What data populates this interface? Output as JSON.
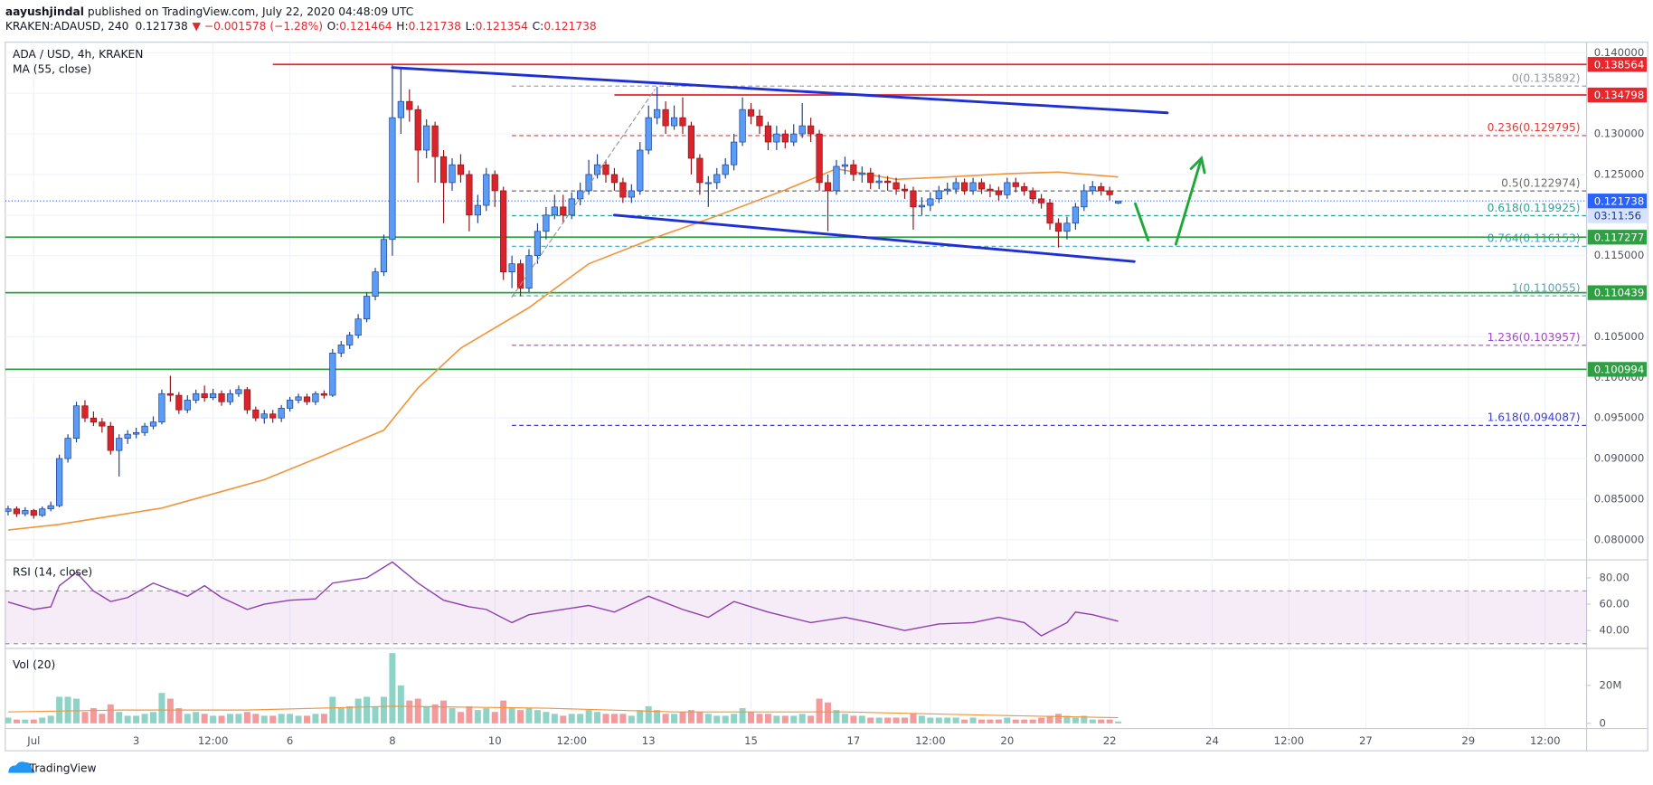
{
  "header": {
    "author": "aayushjindal",
    "published": " published on TradingView.com, July 22, 2020 04:48:09 UTC",
    "symbol": "KRAKEN:ADAUSD, 240",
    "last": "0.121738",
    "change": "▼ −0.001578 (−1.28%)",
    "ohlc": [
      {
        "k": "O:",
        "v": "0.121464"
      },
      {
        "k": "H:",
        "v": "0.121738"
      },
      {
        "k": "L:",
        "v": "0.121354"
      },
      {
        "k": "C:",
        "v": "0.121738"
      }
    ]
  },
  "footer": {
    "logo": "TradingView"
  },
  "chart_data": {
    "type": "candlestick",
    "title": "ADA / USD, 4h, KRAKEN",
    "up_color": "#5b9cf6",
    "up_border": "#1c3f8f",
    "down_color": "#d8242a",
    "down_border": "#8c1519",
    "xlim": [
      -13.33,
      727.4
    ],
    "xticks": [
      {
        "value": 0,
        "label": "Jul"
      },
      {
        "value": 48,
        "label": "3"
      },
      {
        "value": 84,
        "label": "12:00"
      },
      {
        "value": 120,
        "label": "6"
      },
      {
        "value": 168,
        "label": "8"
      },
      {
        "value": 216,
        "label": "10"
      },
      {
        "value": 252,
        "label": "12:00"
      },
      {
        "value": 288,
        "label": "13"
      },
      {
        "value": 336,
        "label": "15"
      },
      {
        "value": 384,
        "label": "17"
      },
      {
        "value": 420,
        "label": "12:00"
      },
      {
        "value": 456,
        "label": "20"
      },
      {
        "value": 504,
        "label": "22"
      },
      {
        "value": 552,
        "label": "24"
      },
      {
        "value": 588,
        "label": "12:00"
      },
      {
        "value": 624,
        "label": "27"
      },
      {
        "value": 672,
        "label": "29"
      },
      {
        "value": 708,
        "label": "12:00"
      }
    ],
    "ylim": [
      0.07765,
      0.1413
    ],
    "yticks": [
      {
        "value": 0.14,
        "label": "0.140000"
      },
      {
        "value": 0.135,
        "label": "0.135000"
      },
      {
        "value": 0.13,
        "label": "0.130000"
      },
      {
        "value": 0.125,
        "label": "0.125000"
      },
      {
        "value": 0.12,
        "label": "0.120000"
      },
      {
        "value": 0.115,
        "label": "0.115000"
      },
      {
        "value": 0.11,
        "label": "0.110000"
      },
      {
        "value": 0.105,
        "label": "0.105000"
      },
      {
        "value": 0.1,
        "label": "0.100000"
      },
      {
        "value": 0.095,
        "label": "0.095000"
      },
      {
        "value": 0.09,
        "label": "0.090000"
      },
      {
        "value": 0.085,
        "label": "0.085000"
      },
      {
        "value": 0.08,
        "label": "0.080000"
      }
    ],
    "grid": true,
    "x": [
      -12,
      -8,
      -4,
      0,
      4,
      8,
      12,
      16,
      20,
      24,
      28,
      32,
      36,
      40,
      44,
      48,
      52,
      56,
      60,
      64,
      68,
      72,
      76,
      80,
      84,
      88,
      92,
      96,
      100,
      104,
      108,
      112,
      116,
      120,
      124,
      128,
      132,
      136,
      140,
      144,
      148,
      152,
      156,
      160,
      164,
      168,
      172,
      176,
      180,
      184,
      188,
      192,
      196,
      200,
      204,
      208,
      212,
      216,
      220,
      224,
      228,
      232,
      236,
      240,
      244,
      248,
      252,
      256,
      260,
      264,
      268,
      272,
      276,
      280,
      284,
      288,
      292,
      296,
      300,
      304,
      308,
      312,
      316,
      320,
      324,
      328,
      332,
      336,
      340,
      344,
      348,
      352,
      356,
      360,
      364,
      368,
      372,
      376,
      380,
      384,
      388,
      392,
      396,
      400,
      404,
      408,
      412,
      416,
      420,
      424,
      428,
      432,
      436,
      440,
      444,
      448,
      452,
      456,
      460,
      464,
      468,
      472,
      476,
      480,
      484,
      488,
      492,
      496,
      500,
      504,
      508
    ],
    "open": [
      0.0835,
      0.0838,
      0.0832,
      0.0836,
      0.083,
      0.0838,
      0.0842,
      0.09,
      0.0925,
      0.0965,
      0.095,
      0.0945,
      0.094,
      0.091,
      0.0925,
      0.093,
      0.0932,
      0.094,
      0.0945,
      0.098,
      0.0978,
      0.096,
      0.0972,
      0.098,
      0.0975,
      0.098,
      0.097,
      0.098,
      0.0985,
      0.096,
      0.095,
      0.0955,
      0.095,
      0.0962,
      0.0972,
      0.0976,
      0.097,
      0.098,
      0.0978,
      0.103,
      0.104,
      0.1052,
      0.1072,
      0.11,
      0.113,
      0.117,
      0.132,
      0.134,
      0.133,
      0.128,
      0.131,
      0.1272,
      0.124,
      0.1262,
      0.125,
      0.12,
      0.1212,
      0.125,
      0.123,
      0.113,
      0.114,
      0.111,
      0.115,
      0.118,
      0.12,
      0.121,
      0.12,
      0.122,
      0.123,
      0.125,
      0.1262,
      0.125,
      0.124,
      0.1222,
      0.123,
      0.128,
      0.132,
      0.133,
      0.131,
      0.132,
      0.131,
      0.127,
      0.124,
      0.124,
      0.125,
      0.1262,
      0.129,
      0.133,
      0.1322,
      0.131,
      0.129,
      0.13,
      0.129,
      0.13,
      0.131,
      0.13,
      0.124,
      0.123,
      0.126,
      0.1262,
      0.125,
      0.1252,
      0.124,
      0.1242,
      0.124,
      0.1232,
      0.123,
      0.121,
      0.1212,
      0.122,
      0.123,
      0.1232,
      0.124,
      0.123,
      0.124,
      0.1232,
      0.123,
      0.1225,
      0.124,
      0.1235,
      0.123,
      0.122,
      0.1215,
      0.119,
      0.118,
      0.119,
      0.121,
      0.123,
      0.1235,
      0.123,
      0.121464
    ],
    "high": [
      0.0842,
      0.0841,
      0.084,
      0.0838,
      0.0841,
      0.0847,
      0.0905,
      0.093,
      0.097,
      0.0972,
      0.0958,
      0.095,
      0.0945,
      0.093,
      0.0935,
      0.0938,
      0.0944,
      0.0952,
      0.0985,
      0.1002,
      0.0982,
      0.0978,
      0.0985,
      0.099,
      0.0986,
      0.0984,
      0.0985,
      0.099,
      0.0988,
      0.0964,
      0.096,
      0.096,
      0.0966,
      0.0976,
      0.098,
      0.098,
      0.0983,
      0.0984,
      0.1035,
      0.1045,
      0.1056,
      0.1078,
      0.1105,
      0.1135,
      0.1176,
      0.1385,
      0.138,
      0.1355,
      0.1335,
      0.1318,
      0.1315,
      0.128,
      0.127,
      0.1275,
      0.1255,
      0.1225,
      0.1258,
      0.1255,
      0.1235,
      0.115,
      0.1145,
      0.1158,
      0.119,
      0.121,
      0.1225,
      0.1225,
      0.1228,
      0.124,
      0.1268,
      0.1275,
      0.1268,
      0.1258,
      0.1246,
      0.1238,
      0.129,
      0.1335,
      0.1358,
      0.134,
      0.1335,
      0.1345,
      0.1315,
      0.1275,
      0.1248,
      0.1258,
      0.127,
      0.13,
      0.1345,
      0.1338,
      0.133,
      0.1315,
      0.131,
      0.1305,
      0.1312,
      0.1338,
      0.132,
      0.1305,
      0.125,
      0.1268,
      0.1272,
      0.1268,
      0.126,
      0.1258,
      0.125,
      0.1248,
      0.1246,
      0.1238,
      0.1235,
      0.1222,
      0.1228,
      0.1236,
      0.124,
      0.1246,
      0.1245,
      0.1246,
      0.1245,
      0.1238,
      0.1235,
      0.1246,
      0.1246,
      0.124,
      0.1234,
      0.1226,
      0.122,
      0.1196,
      0.1198,
      0.1215,
      0.1238,
      0.1242,
      0.124,
      0.1235,
      0.121738
    ],
    "low": [
      0.083,
      0.0828,
      0.0829,
      0.0826,
      0.0828,
      0.0835,
      0.084,
      0.0895,
      0.092,
      0.0945,
      0.094,
      0.0932,
      0.0905,
      0.0878,
      0.0918,
      0.0925,
      0.0928,
      0.0936,
      0.0942,
      0.097,
      0.0955,
      0.0956,
      0.0968,
      0.097,
      0.0972,
      0.0965,
      0.0966,
      0.0976,
      0.0955,
      0.0946,
      0.0943,
      0.0944,
      0.0945,
      0.0958,
      0.0968,
      0.0966,
      0.0966,
      0.0974,
      0.0976,
      0.1025,
      0.1035,
      0.1048,
      0.1068,
      0.1095,
      0.1125,
      0.115,
      0.13,
      0.1315,
      0.124,
      0.127,
      0.124,
      0.119,
      0.123,
      0.124,
      0.118,
      0.119,
      0.1205,
      0.121,
      0.112,
      0.111,
      0.11,
      0.1105,
      0.114,
      0.117,
      0.1195,
      0.119,
      0.1195,
      0.1212,
      0.1225,
      0.1245,
      0.124,
      0.123,
      0.1215,
      0.1215,
      0.1225,
      0.1275,
      0.1312,
      0.13,
      0.1305,
      0.13,
      0.125,
      0.1225,
      0.121,
      0.1232,
      0.1245,
      0.1255,
      0.1285,
      0.1312,
      0.13,
      0.128,
      0.128,
      0.1282,
      0.1285,
      0.1295,
      0.129,
      0.123,
      0.118,
      0.1225,
      0.125,
      0.1242,
      0.124,
      0.1232,
      0.1232,
      0.123,
      0.1225,
      0.122,
      0.1182,
      0.12,
      0.1205,
      0.1215,
      0.1225,
      0.1226,
      0.1225,
      0.1225,
      0.1226,
      0.1222,
      0.1218,
      0.122,
      0.1228,
      0.1224,
      0.1214,
      0.1208,
      0.1182,
      0.116,
      0.117,
      0.1182,
      0.1205,
      0.1225,
      0.1224,
      0.1218,
      0.121354
    ],
    "close": [
      0.0838,
      0.0832,
      0.0836,
      0.083,
      0.0838,
      0.0842,
      0.09,
      0.0925,
      0.0965,
      0.095,
      0.0945,
      0.094,
      0.091,
      0.0925,
      0.093,
      0.0932,
      0.094,
      0.0945,
      0.098,
      0.0978,
      0.096,
      0.0972,
      0.098,
      0.0975,
      0.098,
      0.097,
      0.098,
      0.0985,
      0.096,
      0.095,
      0.0955,
      0.095,
      0.0962,
      0.0972,
      0.0976,
      0.097,
      0.098,
      0.0978,
      0.103,
      0.104,
      0.1052,
      0.1072,
      0.11,
      0.113,
      0.117,
      0.132,
      0.134,
      0.133,
      0.128,
      0.131,
      0.1272,
      0.124,
      0.1262,
      0.125,
      0.12,
      0.1212,
      0.125,
      0.123,
      0.113,
      0.114,
      0.111,
      0.115,
      0.118,
      0.12,
      0.121,
      0.12,
      0.122,
      0.123,
      0.125,
      0.1262,
      0.125,
      0.124,
      0.1222,
      0.123,
      0.128,
      0.132,
      0.133,
      0.131,
      0.132,
      0.131,
      0.127,
      0.124,
      0.124,
      0.125,
      0.1262,
      0.129,
      0.133,
      0.1322,
      0.131,
      0.129,
      0.13,
      0.129,
      0.13,
      0.131,
      0.13,
      0.124,
      0.123,
      0.126,
      0.1262,
      0.125,
      0.1252,
      0.124,
      0.1242,
      0.124,
      0.1232,
      0.123,
      0.121,
      0.1212,
      0.122,
      0.123,
      0.1232,
      0.124,
      0.123,
      0.124,
      0.1232,
      0.123,
      0.1225,
      0.124,
      0.1235,
      0.123,
      0.122,
      0.1215,
      0.119,
      0.118,
      0.119,
      0.121,
      0.123,
      0.1235,
      0.123,
      0.1225,
      0.121738
    ],
    "price_line_color": "#2962ff",
    "countdown": "03:11:56",
    "ma": {
      "name": "MA (55, close)",
      "color": "#f0963c",
      "x": [
        -12,
        12,
        60,
        108,
        136,
        164,
        180,
        200,
        232,
        260,
        292,
        320,
        352,
        376,
        404,
        428,
        456,
        480,
        508
      ],
      "values": [
        0.0812,
        0.0819,
        0.0839,
        0.0874,
        0.0904,
        0.0935,
        0.0987,
        0.1036,
        0.1086,
        0.114,
        0.1173,
        0.1199,
        0.1231,
        0.1257,
        0.1244,
        0.1247,
        0.1251,
        0.1253,
        0.1247
      ]
    },
    "fib": {
      "start_x": 224,
      "levels": [
        {
          "label": "0(0.135892)",
          "value": 0.135892,
          "color": "#9598a1"
        },
        {
          "label": "0.236(0.129795)",
          "value": 0.129795,
          "color": "#e53935"
        },
        {
          "label": "0.5(0.122974)",
          "value": 0.122974,
          "color": "#6b6b6b"
        },
        {
          "label": "0.618(0.119925)",
          "value": 0.119925,
          "color": "#26a69a"
        },
        {
          "label": "0.764(0.116153)",
          "value": 0.116153,
          "color": "#3aa0c8"
        },
        {
          "label": "1(0.110055)",
          "value": 0.110055,
          "color": "#5ba3b6"
        },
        {
          "label": "1.236(0.103957)",
          "value": 0.103957,
          "color": "#a347c9"
        },
        {
          "label": "1.618(0.094087)",
          "value": 0.094087,
          "color": "#3f3fd0"
        }
      ]
    },
    "hlines": [
      {
        "value": 0.138564,
        "color": "#e8262c",
        "start_x": 112
      },
      {
        "value": 0.134798,
        "color": "#e8262c",
        "start_x": 272
      },
      {
        "value": 0.117277,
        "color": "#2ea043"
      },
      {
        "value": 0.110439,
        "color": "#2ea043"
      },
      {
        "value": 0.100994,
        "color": "#2ea043"
      }
    ],
    "drawings": [
      {
        "color": "#1f2fd6",
        "width": 2.5,
        "points": [
          [
            168,
            0.13818
          ],
          [
            531,
            0.1326
          ]
        ]
      },
      {
        "color": "#1f2fd6",
        "width": 2.5,
        "points": [
          [
            272,
            0.12
          ],
          [
            515.5,
            0.11428
          ]
        ]
      },
      {
        "color": "#9598a1",
        "width": 1,
        "dash": true,
        "points": [
          [
            224,
            0.1099
          ],
          [
            291,
            0.1355
          ]
        ]
      },
      {
        "color": "#1fa83a",
        "width": 2.5,
        "points": [
          [
            516,
            0.1214
          ],
          [
            522,
            0.1169
          ]
        ]
      },
      {
        "color": "#1fa83a",
        "width": 2.5,
        "head": true,
        "points": [
          [
            535,
            0.1164
          ],
          [
            547,
            0.127
          ]
        ]
      }
    ],
    "rsi": {
      "name": "RSI (14, close)",
      "color": "#8e3fae",
      "band": [
        30,
        70
      ],
      "band_color": "#9c27b0",
      "ylim": [
        27.2,
        92.8
      ],
      "yticks": [
        {
          "value": 80,
          "label": "80.00"
        },
        {
          "value": 60,
          "label": "60.00"
        },
        {
          "value": 40,
          "label": "40.00"
        }
      ],
      "x": [
        -12,
        0,
        8,
        12,
        20,
        28,
        36,
        44,
        56,
        72,
        80,
        88,
        100,
        108,
        120,
        132,
        140,
        156,
        168,
        180,
        192,
        204,
        212,
        224,
        232,
        248,
        260,
        272,
        288,
        304,
        316,
        328,
        344,
        364,
        380,
        392,
        408,
        424,
        440,
        452,
        464,
        472,
        484,
        488,
        496,
        508
      ],
      "values": [
        61.6,
        56,
        58,
        74,
        84,
        70,
        62,
        65,
        76,
        66,
        74,
        65,
        56,
        60,
        63,
        64,
        76,
        80,
        92,
        76,
        63,
        58,
        56,
        46,
        52,
        56,
        59,
        54,
        66,
        56,
        50,
        62,
        54,
        46,
        50,
        46,
        40,
        45,
        46,
        50,
        46,
        36,
        46,
        54,
        52,
        47
      ]
    },
    "volume": {
      "name": "Vol (20)",
      "up_color": "#8fd3c6",
      "down_color": "#f29a9c",
      "ylim": [
        -2200000,
        38900000
      ],
      "yticks": [
        {
          "value": 20000000,
          "label": "20M"
        },
        0
      ],
      "values": [
        3000000.0,
        2000000.0,
        2000000.0,
        2000000.0,
        3000000.0,
        4000000.0,
        14000000.0,
        14000000.0,
        13000000.0,
        6000000.0,
        8000000.0,
        5000000.0,
        10000000.0,
        6000000.0,
        4000000.0,
        4000000.0,
        5000000.0,
        6000000.0,
        16000000.0,
        13000000.0,
        8000000.0,
        5000000.0,
        6000000.0,
        5000000.0,
        4000000.0,
        4000000.0,
        5000000.0,
        5000000.0,
        6000000.0,
        5000000.0,
        4000000.0,
        4000000.0,
        5000000.0,
        5000000.0,
        4000000.0,
        4000000.0,
        5000000.0,
        5000000.0,
        14000000.0,
        8000000.0,
        9000000.0,
        13000000.0,
        14000000.0,
        9000000.0,
        14000000.0,
        37000000.0,
        20000000.0,
        12000000.0,
        13000000.0,
        9000000.0,
        10000000.0,
        12000000.0,
        8000000.0,
        6000000.0,
        9000000.0,
        7000000.0,
        8000000.0,
        6000000.0,
        12000000.0,
        8000000.0,
        7000000.0,
        8000000.0,
        7000000.0,
        6000000.0,
        5000000.0,
        4000000.0,
        5000000.0,
        5000000.0,
        7000000.0,
        6000000.0,
        5000000.0,
        5000000.0,
        5000000.0,
        4000000.0,
        7000000.0,
        9000000.0,
        7000000.0,
        5000000.0,
        5000000.0,
        6000000.0,
        7000000.0,
        6000000.0,
        5000000.0,
        4000000.0,
        4000000.0,
        5000000.0,
        8000000.0,
        6000000.0,
        5000000.0,
        5000000.0,
        4000000.0,
        4000000.0,
        4000000.0,
        5000000.0,
        4000000.0,
        13000000.0,
        11000000.0,
        7000000.0,
        5000000.0,
        4000000.0,
        4000000.0,
        3000000.0,
        3000000.0,
        3000000.0,
        3000000.0,
        3000000.0,
        5000000.0,
        4000000.0,
        3000000.0,
        3000000.0,
        3000000.0,
        3000000.0,
        2000000.0,
        3000000.0,
        2000000.0,
        2000000.0,
        2000000.0,
        3000000.0,
        2000000.0,
        2000000.0,
        2000000.0,
        3000000.0,
        4000000.0,
        5000000.0,
        4000000.0,
        3000000.0,
        4000000.0,
        2000000.0,
        2000000.0,
        2000000.0,
        1000000.0
      ],
      "ma": {
        "color": "#f0963c",
        "x": [
          -12,
          40,
          100,
          168,
          240,
          300,
          380,
          460,
          508
        ],
        "values": [
          6000000.0,
          7000000.0,
          7000000.0,
          9000000.0,
          8000000.0,
          6000000.0,
          6000000.0,
          4000000.0,
          3000000.0
        ]
      }
    }
  }
}
